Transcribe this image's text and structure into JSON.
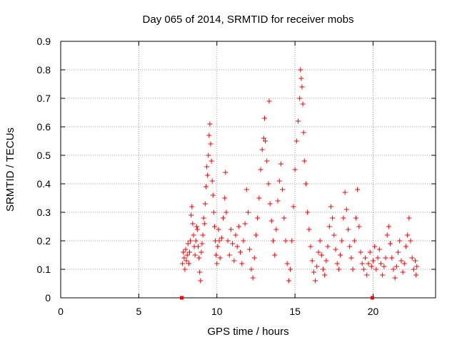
{
  "chart_data": {
    "type": "scatter",
    "title": "Day 065 of 2014, SRMTID for receiver mobs",
    "xlabel": "GPS time / hours",
    "ylabel": "SRMTID / TECUs",
    "xlim": [
      0,
      24
    ],
    "ylim": [
      0,
      0.9
    ],
    "x_ticks": [
      "0",
      "5",
      "10",
      "15",
      "20"
    ],
    "y_ticks": [
      "0",
      "0.1",
      "0.2",
      "0.3",
      "0.4",
      "0.5",
      "0.6",
      "0.7",
      "0.8",
      "0.9"
    ],
    "grid": true,
    "marker": "+",
    "marker_color": "#ff0000",
    "legend": null,
    "series": [
      {
        "points": [
          [
            7.8,
            0.12
          ],
          [
            7.85,
            0.16
          ],
          [
            7.9,
            0.14
          ],
          [
            7.95,
            0.1
          ],
          [
            8.0,
            0.17
          ],
          [
            8.05,
            0.13
          ],
          [
            8.1,
            0.15
          ],
          [
            8.15,
            0.19
          ],
          [
            8.2,
            0.12
          ],
          [
            8.25,
            0.16
          ],
          [
            8.3,
            0.2
          ],
          [
            8.35,
            0.29
          ],
          [
            8.4,
            0.32
          ],
          [
            8.45,
            0.26
          ],
          [
            8.5,
            0.22
          ],
          [
            8.55,
            0.18
          ],
          [
            8.6,
            0.15
          ],
          [
            8.65,
            0.2
          ],
          [
            8.7,
            0.25
          ],
          [
            8.75,
            0.24
          ],
          [
            8.8,
            0.18
          ],
          [
            8.85,
            0.14
          ],
          [
            8.9,
            0.09
          ],
          [
            8.95,
            0.06
          ],
          [
            9.0,
            0.16
          ],
          [
            9.05,
            0.19
          ],
          [
            9.1,
            0.22
          ],
          [
            9.15,
            0.28
          ],
          [
            9.2,
            0.26
          ],
          [
            9.25,
            0.33
          ],
          [
            9.3,
            0.39
          ],
          [
            9.35,
            0.46
          ],
          [
            9.4,
            0.43
          ],
          [
            9.45,
            0.5
          ],
          [
            9.5,
            0.57
          ],
          [
            9.55,
            0.61
          ],
          [
            9.6,
            0.54
          ],
          [
            9.65,
            0.48
          ],
          [
            9.7,
            0.41
          ],
          [
            9.75,
            0.36
          ],
          [
            9.8,
            0.3
          ],
          [
            9.85,
            0.25
          ],
          [
            9.9,
            0.2
          ],
          [
            9.95,
            0.15
          ],
          [
            10.0,
            0.12
          ],
          [
            10.05,
            0.18
          ],
          [
            10.1,
            0.24
          ],
          [
            10.15,
            0.2
          ],
          [
            10.2,
            0.14
          ],
          [
            10.3,
            0.21
          ],
          [
            10.4,
            0.28
          ],
          [
            10.5,
            0.35
          ],
          [
            10.55,
            0.44
          ],
          [
            10.6,
            0.3
          ],
          [
            10.7,
            0.2
          ],
          [
            10.8,
            0.15
          ],
          [
            10.9,
            0.24
          ],
          [
            11.0,
            0.19
          ],
          [
            11.1,
            0.13
          ],
          [
            11.2,
            0.22
          ],
          [
            11.3,
            0.18
          ],
          [
            11.4,
            0.25
          ],
          [
            11.5,
            0.16
          ],
          [
            11.6,
            0.12
          ],
          [
            11.7,
            0.2
          ],
          [
            11.8,
            0.26
          ],
          [
            11.9,
            0.38
          ],
          [
            12.0,
            0.3
          ],
          [
            12.1,
            0.17
          ],
          [
            12.2,
            0.1
          ],
          [
            12.3,
            0.07
          ],
          [
            12.4,
            0.14
          ],
          [
            12.5,
            0.22
          ],
          [
            12.6,
            0.28
          ],
          [
            12.7,
            0.35
          ],
          [
            12.8,
            0.45
          ],
          [
            12.9,
            0.52
          ],
          [
            13.0,
            0.56
          ],
          [
            13.05,
            0.63
          ],
          [
            13.1,
            0.55
          ],
          [
            13.2,
            0.48
          ],
          [
            13.3,
            0.4
          ],
          [
            13.35,
            0.69
          ],
          [
            13.4,
            0.33
          ],
          [
            13.5,
            0.27
          ],
          [
            13.6,
            0.2
          ],
          [
            13.7,
            0.15
          ],
          [
            13.8,
            0.24
          ],
          [
            13.9,
            0.34
          ],
          [
            14.0,
            0.41
          ],
          [
            14.1,
            0.47
          ],
          [
            14.2,
            0.38
          ],
          [
            14.3,
            0.28
          ],
          [
            14.4,
            0.2
          ],
          [
            14.5,
            0.12
          ],
          [
            14.6,
            0.06
          ],
          [
            14.7,
            0.1
          ],
          [
            14.8,
            0.2
          ],
          [
            14.9,
            0.32
          ],
          [
            15.0,
            0.45
          ],
          [
            15.1,
            0.55
          ],
          [
            15.2,
            0.62
          ],
          [
            15.3,
            0.7
          ],
          [
            15.35,
            0.8
          ],
          [
            15.4,
            0.77
          ],
          [
            15.45,
            0.74
          ],
          [
            15.5,
            0.68
          ],
          [
            15.55,
            0.58
          ],
          [
            15.6,
            0.48
          ],
          [
            15.7,
            0.4
          ],
          [
            15.8,
            0.3
          ],
          [
            15.9,
            0.24
          ],
          [
            16.0,
            0.18
          ],
          [
            16.1,
            0.13
          ],
          [
            16.2,
            0.09
          ],
          [
            16.3,
            0.06
          ],
          [
            16.4,
            0.11
          ],
          [
            16.5,
            0.16
          ],
          [
            16.6,
            0.2
          ],
          [
            16.7,
            0.15
          ],
          [
            16.8,
            0.1
          ],
          [
            16.9,
            0.08
          ],
          [
            17.0,
            0.13
          ],
          [
            17.1,
            0.18
          ],
          [
            17.2,
            0.25
          ],
          [
            17.3,
            0.32
          ],
          [
            17.4,
            0.28
          ],
          [
            17.5,
            0.22
          ],
          [
            17.6,
            0.17
          ],
          [
            17.7,
            0.12
          ],
          [
            17.8,
            0.1
          ],
          [
            17.9,
            0.15
          ],
          [
            18.0,
            0.2
          ],
          [
            18.1,
            0.28
          ],
          [
            18.2,
            0.37
          ],
          [
            18.3,
            0.31
          ],
          [
            18.4,
            0.24
          ],
          [
            18.5,
            0.18
          ],
          [
            18.6,
            0.14
          ],
          [
            18.7,
            0.1
          ],
          [
            18.8,
            0.2
          ],
          [
            18.9,
            0.28
          ],
          [
            19.0,
            0.38
          ],
          [
            19.1,
            0.25
          ],
          [
            19.2,
            0.16
          ],
          [
            19.3,
            0.12
          ],
          [
            19.4,
            0.1
          ],
          [
            19.5,
            0.14
          ],
          [
            19.6,
            0.08
          ],
          [
            19.7,
            0.12
          ],
          [
            19.8,
            0.16
          ],
          [
            19.9,
            0.11
          ],
          [
            20.0,
            0.13
          ],
          [
            20.1,
            0.18
          ],
          [
            20.2,
            0.1
          ],
          [
            20.3,
            0.14
          ],
          [
            20.4,
            0.17
          ],
          [
            20.5,
            0.12
          ],
          [
            20.6,
            0.08
          ],
          [
            20.7,
            0.11
          ],
          [
            20.8,
            0.14
          ],
          [
            20.9,
            0.22
          ],
          [
            21.0,
            0.25
          ],
          [
            21.1,
            0.19
          ],
          [
            21.2,
            0.14
          ],
          [
            21.3,
            0.1
          ],
          [
            21.4,
            0.07
          ],
          [
            21.5,
            0.11
          ],
          [
            21.6,
            0.16
          ],
          [
            21.7,
            0.2
          ],
          [
            21.8,
            0.13
          ],
          [
            21.9,
            0.09
          ],
          [
            22.0,
            0.12
          ],
          [
            22.1,
            0.18
          ],
          [
            22.2,
            0.22
          ],
          [
            22.3,
            0.28
          ],
          [
            22.4,
            0.2
          ],
          [
            22.5,
            0.14
          ],
          [
            22.6,
            0.1
          ],
          [
            22.7,
            0.13
          ],
          [
            22.75,
            0.08
          ],
          [
            22.8,
            0.11
          ]
        ],
        "color": "#ff0000",
        "marker": "+"
      },
      {
        "points": [
          [
            7.75,
            0.0
          ],
          [
            19.95,
            0.0
          ]
        ],
        "color": "#ff0000",
        "marker": "square"
      }
    ]
  }
}
